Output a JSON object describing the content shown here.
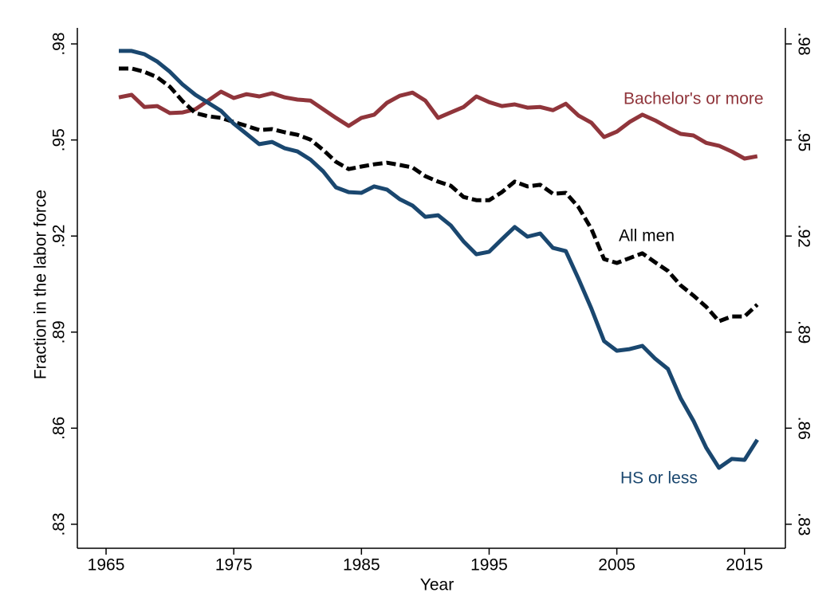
{
  "chart_data": {
    "type": "line",
    "x_label": "Year",
    "y_label": "Fraction in the labor force",
    "x": [
      1966,
      1967,
      1968,
      1969,
      1970,
      1971,
      1972,
      1973,
      1974,
      1975,
      1976,
      1977,
      1978,
      1979,
      1980,
      1981,
      1982,
      1983,
      1984,
      1985,
      1986,
      1987,
      1988,
      1989,
      1990,
      1991,
      1992,
      1993,
      1994,
      1995,
      1996,
      1997,
      1998,
      1999,
      2000,
      2001,
      2002,
      2003,
      2004,
      2005,
      2006,
      2007,
      2008,
      2009,
      2010,
      2011,
      2012,
      2013,
      2014,
      2015,
      2016
    ],
    "series": [
      {
        "name": "Bachelor's or more",
        "color": "#90353b",
        "dashed": false,
        "values": [
          0.9633,
          0.9641,
          0.9603,
          0.9606,
          0.9584,
          0.9586,
          0.9596,
          0.9623,
          0.9651,
          0.9631,
          0.9643,
          0.9636,
          0.9646,
          0.9633,
          0.9626,
          0.9623,
          0.9596,
          0.9569,
          0.9544,
          0.9569,
          0.9579,
          0.9616,
          0.9638,
          0.9648,
          0.9623,
          0.9569,
          0.9586,
          0.9603,
          0.9636,
          0.9618,
          0.9606,
          0.9611,
          0.9601,
          0.9603,
          0.9593,
          0.9613,
          0.9576,
          0.9554,
          0.9509,
          0.9526,
          0.9556,
          0.9579,
          0.9561,
          0.9539,
          0.9519,
          0.9514,
          0.9491,
          0.9482,
          0.9464,
          0.9442,
          0.9449
        ]
      },
      {
        "name": "All men",
        "color": "#000000",
        "dashed": true,
        "values": [
          0.9723,
          0.9723,
          0.9713,
          0.9696,
          0.9666,
          0.9621,
          0.9584,
          0.9574,
          0.9569,
          0.9556,
          0.9544,
          0.9531,
          0.9534,
          0.9524,
          0.9516,
          0.9501,
          0.9469,
          0.9432,
          0.9409,
          0.9417,
          0.9424,
          0.9429,
          0.9422,
          0.9414,
          0.9387,
          0.937,
          0.9357,
          0.9322,
          0.9312,
          0.9312,
          0.9337,
          0.937,
          0.9355,
          0.936,
          0.9332,
          0.9335,
          0.929,
          0.9223,
          0.9128,
          0.9116,
          0.9131,
          0.9146,
          0.9118,
          0.9091,
          0.9046,
          0.9014,
          0.8979,
          0.8934,
          0.8949,
          0.8949,
          0.8986
        ]
      },
      {
        "name": "HS or less",
        "color": "#1a476f",
        "dashed": false,
        "values": [
          0.9778,
          0.9778,
          0.9768,
          0.9745,
          0.9713,
          0.9673,
          0.9641,
          0.9616,
          0.9591,
          0.9551,
          0.9519,
          0.9487,
          0.9494,
          0.9474,
          0.9464,
          0.9439,
          0.9402,
          0.9352,
          0.9337,
          0.9335,
          0.9355,
          0.9345,
          0.9315,
          0.9295,
          0.926,
          0.9265,
          0.9233,
          0.9183,
          0.9143,
          0.9151,
          0.919,
          0.9228,
          0.9198,
          0.9208,
          0.9163,
          0.9153,
          0.9066,
          0.8974,
          0.8872,
          0.8842,
          0.8847,
          0.8857,
          0.8817,
          0.8785,
          0.8693,
          0.8623,
          0.8539,
          0.8476,
          0.8504,
          0.8501,
          0.8564
        ]
      }
    ],
    "xlim": [
      1962.75,
      2018.2
    ],
    "xticks": [
      1965,
      1975,
      1985,
      1995,
      2005,
      2015
    ],
    "ylim": [
      0.8225,
      0.985
    ],
    "yticks": [
      {
        "value": 0.83,
        "label": ".83"
      },
      {
        "value": 0.86,
        "label": ".86"
      },
      {
        "value": 0.89,
        "label": ".89"
      },
      {
        "value": 0.92,
        "label": ".92"
      },
      {
        "value": 0.95,
        "label": ".95"
      },
      {
        "value": 0.98,
        "label": ".98"
      }
    ],
    "y2lim": [
      0.8225,
      0.985
    ],
    "y2ticks": [
      {
        "value": 0.83,
        "label": ".83"
      },
      {
        "value": 0.86,
        "label": ".86"
      },
      {
        "value": 0.89,
        "label": ".89"
      },
      {
        "value": 0.92,
        "label": ".92"
      },
      {
        "value": 0.95,
        "label": ".95"
      },
      {
        "value": 0.98,
        "label": ".98"
      }
    ],
    "grid": false
  }
}
